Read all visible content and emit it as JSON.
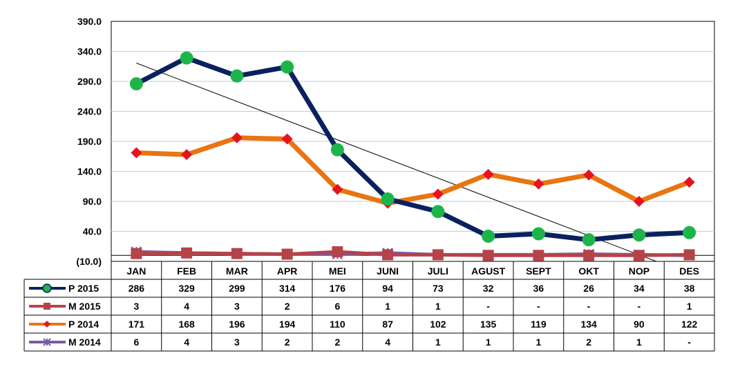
{
  "chart_data": {
    "type": "line",
    "categories": [
      "JAN",
      "FEB",
      "MAR",
      "APR",
      "MEI",
      "JUNI",
      "JULI",
      "AGUST",
      "SEPT",
      "OKT",
      "NOP",
      "DES"
    ],
    "yticks": [
      "(10.0)",
      "40.0",
      "90.0",
      "140.0",
      "190.0",
      "240.0",
      "290.0",
      "340.0",
      "390.0"
    ],
    "ylim": [
      -10,
      390
    ],
    "grid": true,
    "legend": "data-table-left",
    "series": [
      {
        "name": "P 2015",
        "color": "#0a2160",
        "marker": "circle",
        "marker_color": "#1db54a",
        "values": [
          286,
          329,
          299,
          314,
          176,
          94,
          73,
          32,
          36,
          26,
          34,
          38
        ],
        "labels": [
          "286",
          "329",
          "299",
          "314",
          "176",
          "94",
          "73",
          "32",
          "36",
          "26",
          "34",
          "38"
        ]
      },
      {
        "name": "M 2015",
        "color": "#b5434a",
        "marker": "square",
        "marker_color": "#b5434a",
        "values": [
          3,
          4,
          3,
          2,
          6,
          1,
          1,
          0,
          0,
          0,
          0,
          1
        ],
        "labels": [
          "3",
          "4",
          "3",
          "2",
          "6",
          "1",
          "1",
          "-",
          "-",
          "-",
          "-",
          "1"
        ]
      },
      {
        "name": "P 2014",
        "color": "#e87511",
        "marker": "diamond",
        "marker_color": "#e8121d",
        "values": [
          171,
          168,
          196,
          194,
          110,
          87,
          102,
          135,
          119,
          134,
          90,
          122
        ],
        "labels": [
          "171",
          "168",
          "196",
          "194",
          "110",
          "87",
          "102",
          "135",
          "119",
          "134",
          "90",
          "122"
        ]
      },
      {
        "name": "M 2014",
        "color": "#7b5aa6",
        "marker": "star",
        "marker_color": "#7b5aa6",
        "values": [
          6,
          4,
          3,
          2,
          2,
          4,
          1,
          1,
          1,
          2,
          1,
          0
        ],
        "labels": [
          "6",
          "4",
          "3",
          "2",
          "2",
          "4",
          "1",
          "1",
          "1",
          "2",
          "1",
          "-"
        ]
      }
    ],
    "trendline": {
      "series": "P 2015",
      "type": "linear",
      "color": "#000000"
    }
  }
}
